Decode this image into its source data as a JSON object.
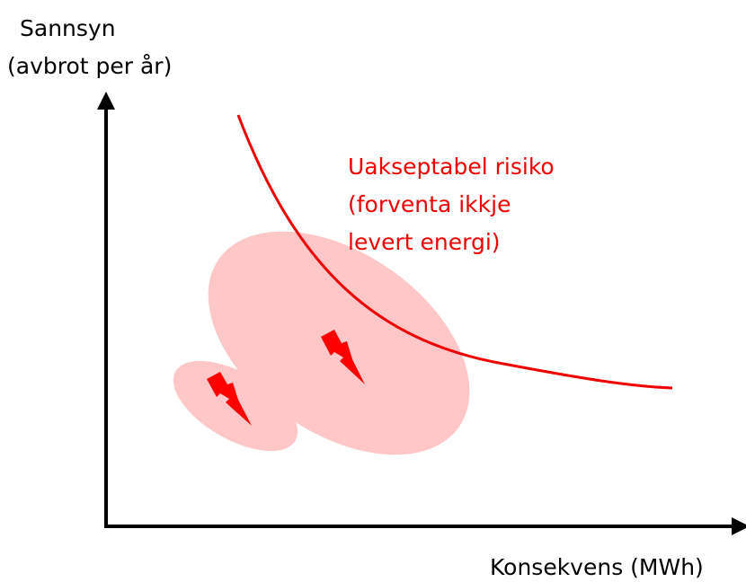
{
  "y_axis_label": [
    "Sannsyn",
    "(avbrot per år)"
  ],
  "x_axis_label": "Konsekvens (MWh)",
  "annotation": [
    "Uakseptabel risiko",
    "(forventa ikkje",
    "levert energi)"
  ]
}
